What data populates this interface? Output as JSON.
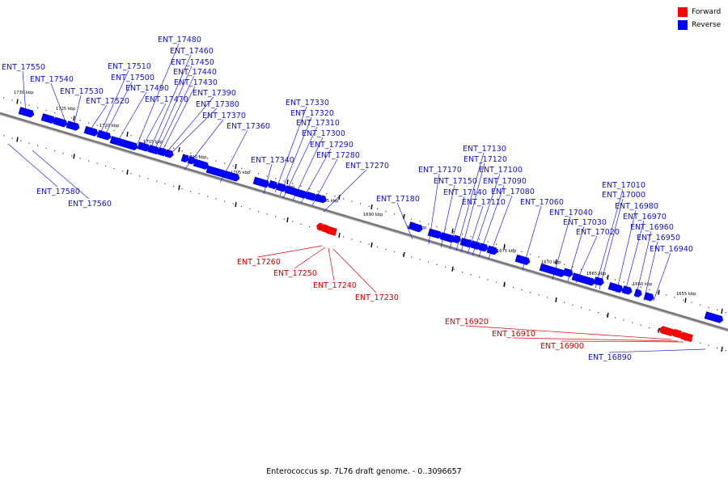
{
  "caption": "Enterococcus sp. 7L76 draft genome. - 0..3096657",
  "legend": [
    {
      "label": "Forward",
      "color": "#ff0000"
    },
    {
      "label": "Reverse",
      "color": "#0000ff"
    }
  ],
  "colors": {
    "forward": "#ff0000",
    "reverse": "#0000ff",
    "forward_label": "#cc0000",
    "reverse_label": "#1010c8",
    "backbone": "#777777"
  },
  "ticks": [
    "1730 kbp",
    "1725 kbp",
    "1720 kbp",
    "1715 kbp",
    "1710 kbp",
    "1705 kbp",
    "1700 kbp",
    "1695 kbp",
    "1690 kbp",
    "1685 kbp",
    "1680 kbp",
    "1675 kbp",
    "1670 kbp",
    "1665 kbp",
    "1660 kbp",
    "1655 kbp"
  ],
  "reverse_genes": [
    "ENT_17550",
    "ENT_17540",
    "ENT_17530",
    "ENT_17520",
    "ENT_17510",
    "ENT_17500",
    "ENT_17490",
    "ENT_17480",
    "ENT_17470",
    "ENT_17460",
    "ENT_17450",
    "ENT_17440",
    "ENT_17430",
    "ENT_17390",
    "ENT_17380",
    "ENT_17370",
    "ENT_17360",
    "ENT_17340",
    "ENT_17330",
    "ENT_17320",
    "ENT_17310",
    "ENT_17300",
    "ENT_17290",
    "ENT_17280",
    "ENT_17270",
    "ENT_17180",
    "ENT_17170",
    "ENT_17150",
    "ENT_17140",
    "ENT_17130",
    "ENT_17120",
    "ENT_17110",
    "ENT_17100",
    "ENT_17090",
    "ENT_17080",
    "ENT_17060",
    "ENT_17040",
    "ENT_17030",
    "ENT_17020",
    "ENT_17010",
    "ENT_17000",
    "ENT_16980",
    "ENT_16970",
    "ENT_16960",
    "ENT_16950",
    "ENT_16940",
    "ENT_17580",
    "ENT_17560",
    "ENT_16890"
  ],
  "forward_genes": [
    "ENT_17260",
    "ENT_17250",
    "ENT_17240",
    "ENT_17230",
    "ENT_16920",
    "ENT_16910",
    "ENT_16900"
  ]
}
